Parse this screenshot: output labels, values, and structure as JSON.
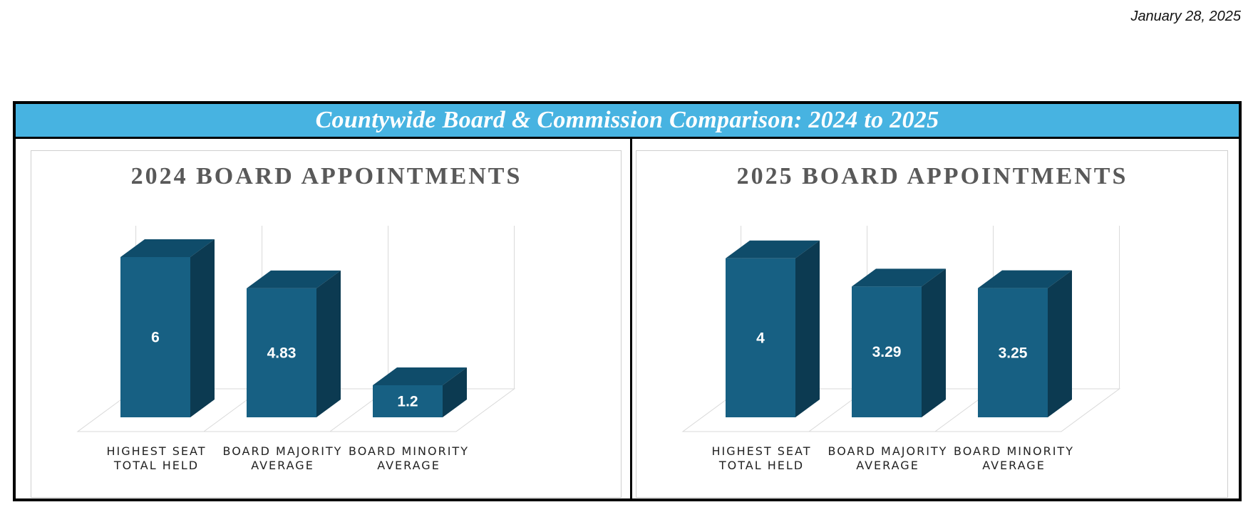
{
  "date": "January 28, 2025",
  "banner": {
    "title": "Countywide Board & Commission Comparison:  2024 to 2025"
  },
  "colors": {
    "banner": "#47b3e1",
    "bar_front": "#176083",
    "bar_top": "#0f4c6a",
    "bar_side": "#0c3a51",
    "grid": "#d9d9d9",
    "title_text": "#595959"
  },
  "chart_data": [
    {
      "type": "bar",
      "title": "2024 BOARD APPOINTMENTS",
      "categories": [
        [
          "HIGHEST SEAT",
          "TOTAL HELD"
        ],
        [
          "BOARD MAJORITY",
          "AVERAGE"
        ],
        [
          "BOARD MINORITY",
          "AVERAGE"
        ]
      ],
      "values": [
        6,
        4.83,
        1.2
      ],
      "value_labels": [
        "6",
        "4.83",
        "1.2"
      ],
      "ylim": [
        0,
        6.4
      ],
      "three_d": true,
      "grid": true
    },
    {
      "type": "bar",
      "title": "2025 BOARD APPOINTMENTS",
      "categories": [
        [
          "HIGHEST SEAT",
          "TOTAL HELD"
        ],
        [
          "BOARD MAJORITY",
          "AVERAGE"
        ],
        [
          "BOARD MINORITY",
          "AVERAGE"
        ]
      ],
      "values": [
        4,
        3.29,
        3.25
      ],
      "value_labels": [
        "4",
        "3.29",
        "3.25"
      ],
      "ylim": [
        0,
        4.3
      ],
      "three_d": true,
      "grid": true
    }
  ]
}
